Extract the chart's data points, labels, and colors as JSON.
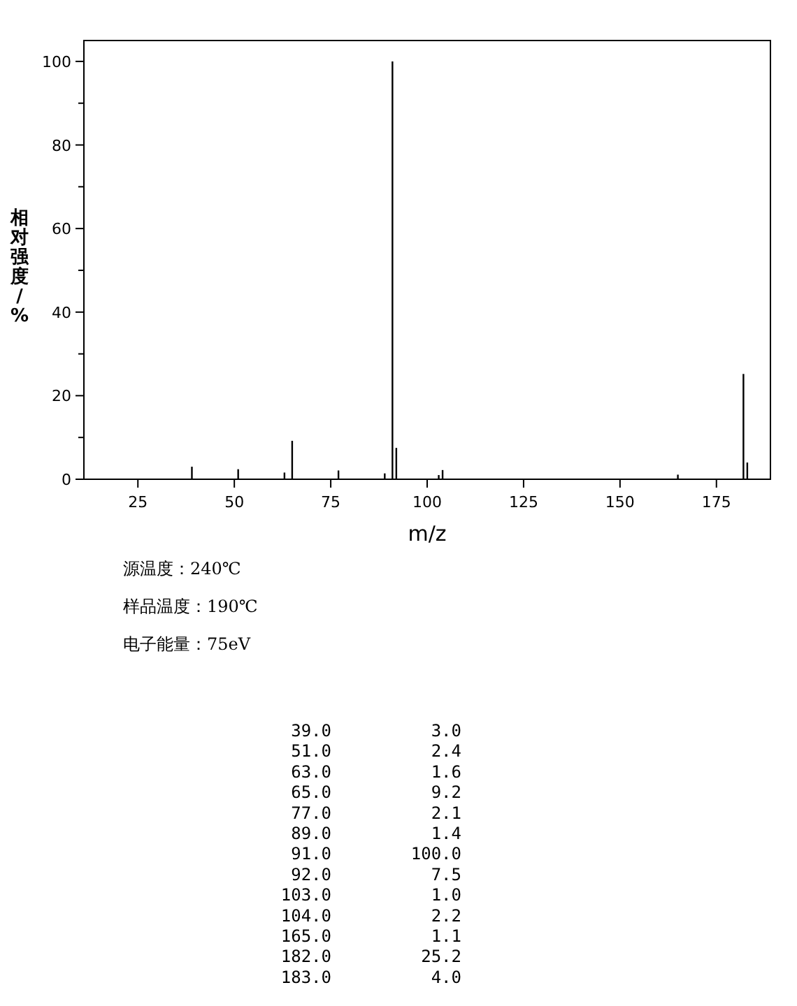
{
  "chart_data": {
    "type": "bar",
    "xlabel": "m/z",
    "ylabel": "相对强度/%",
    "x": [
      39,
      51,
      63,
      65,
      77,
      89,
      91,
      92,
      103,
      104,
      165,
      182,
      183
    ],
    "values": [
      3.0,
      2.4,
      1.6,
      9.2,
      2.1,
      1.4,
      100.0,
      7.5,
      1.0,
      2.2,
      1.1,
      25.2,
      4.0
    ],
    "color": "#000000",
    "xlim": [
      11,
      189
    ],
    "xticks": [
      25,
      50,
      75,
      100,
      125,
      150,
      175
    ],
    "ylim": [
      0,
      105
    ],
    "yticks": [
      0,
      {
        "value": 10,
        "label": null
      },
      20,
      {
        "value": 30,
        "label": null
      },
      40,
      {
        "value": 50,
        "label": null
      },
      60,
      {
        "value": 70,
        "label": null
      },
      80,
      {
        "value": 90,
        "label": null
      },
      100
    ],
    "grid": false,
    "annotations": [
      "源温度：240℃",
      "样品温度：190℃",
      "电子能量：75eV",
      "39.0",
      "3.0",
      "51.0",
      "2.4",
      "63.0",
      "1.6",
      "65.0",
      "9.2",
      "77.0",
      "2.1",
      "89.0",
      "1.4",
      "91.0",
      "100.0",
      "92.0",
      "7.5",
      "103.0",
      "1.0",
      "104.0",
      "2.2",
      "165.0",
      "1.1",
      "182.0",
      "25.2",
      "183.0",
      "4.0"
    ]
  }
}
